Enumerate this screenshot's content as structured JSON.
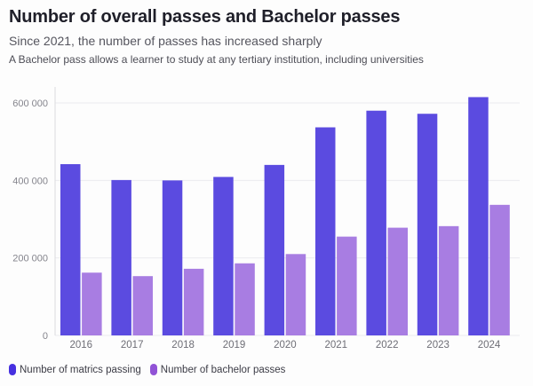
{
  "header": {
    "title": "Number of overall passes and Bachelor passes",
    "subtitle": "Since 2021, the number of passes has increased sharply",
    "description": "A Bachelor pass allows a learner to study at any tertiary institution, including universities"
  },
  "chart_data": {
    "type": "bar",
    "categories": [
      "2016",
      "2017",
      "2018",
      "2019",
      "2020",
      "2021",
      "2022",
      "2023",
      "2024"
    ],
    "series": [
      {
        "name": "Number of matrics passing",
        "color": "#5b4be0",
        "legend_color": "#4630e0",
        "values": [
          442000,
          401000,
          400000,
          409000,
          440000,
          537000,
          580000,
          572000,
          615000
        ]
      },
      {
        "name": "Number of bachelor passes",
        "color": "#a87de2",
        "legend_color": "#9153d6",
        "values": [
          162000,
          153000,
          172000,
          186000,
          210000,
          255000,
          278000,
          282000,
          337000
        ]
      }
    ],
    "ylim": [
      0,
      640000
    ],
    "yticks": [
      {
        "value": 0,
        "label": "0"
      },
      {
        "value": 200000,
        "label": "200 000"
      },
      {
        "value": 400000,
        "label": "400 000"
      },
      {
        "value": 600000,
        "label": "600 000"
      }
    ],
    "grid": "horizontal",
    "legend_position": "bottom-left",
    "axis_color": "#dcdce0",
    "grid_color": "#ebebef",
    "tick_label_color": "#85858d",
    "x_label_color": "#6e6e76"
  }
}
